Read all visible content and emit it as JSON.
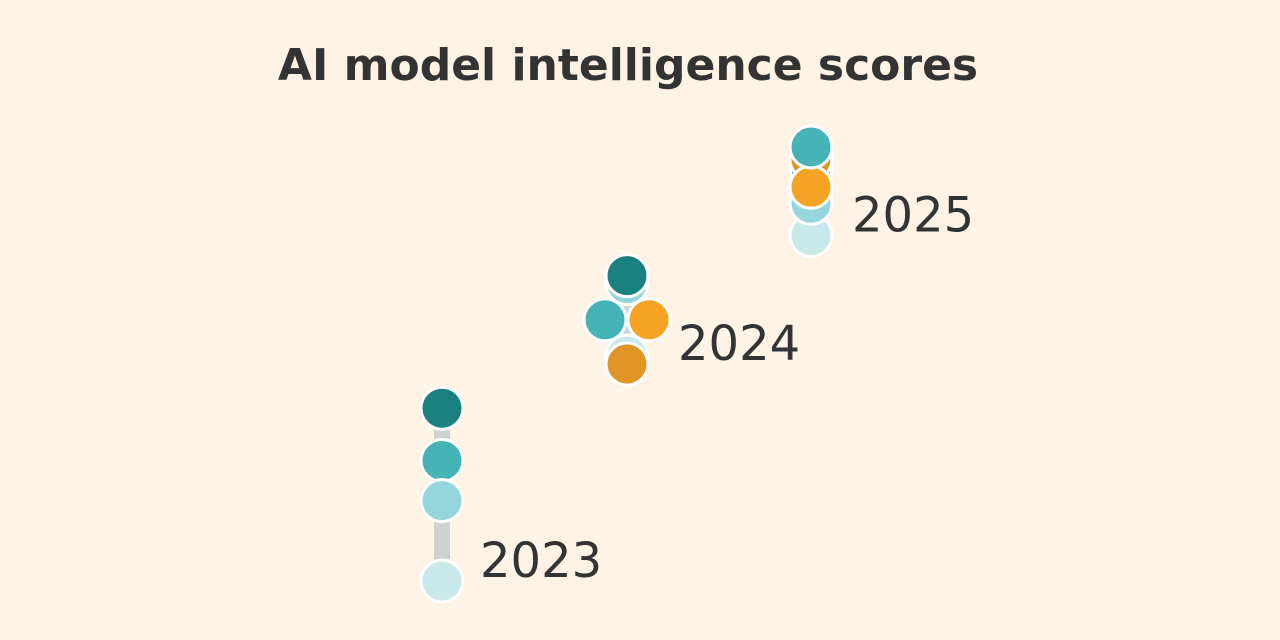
{
  "chart_data": {
    "type": "scatter",
    "title": "AI model intelligence scores",
    "xlabel": "",
    "ylabel": "",
    "grid": false,
    "legend": "none",
    "colors": {
      "background": "#fef3e4",
      "range_bar": "#d0d0d0",
      "dot_outline": "#ffffff",
      "text": "#333333"
    },
    "categories": [
      "2023",
      "2024",
      "2025"
    ],
    "groups": [
      {
        "label": "2023",
        "points": [
          {
            "value": 90,
            "color": "#1a8080"
          },
          {
            "value": 77,
            "color": "#46b3b6"
          },
          {
            "value": 67,
            "color": "#95d6dc"
          },
          {
            "value": 47,
            "color": "#c8e8ea"
          }
        ]
      },
      {
        "label": "2024",
        "points": [
          {
            "value": 121,
            "color": "#95d6dc"
          },
          {
            "value": 123,
            "color": "#1a8080"
          },
          {
            "value": 112,
            "color": "#46b3b6"
          },
          {
            "value": 112,
            "color": "#f5a324"
          },
          {
            "value": 103,
            "color": "#c8e8ea"
          },
          {
            "value": 101,
            "color": "#e09624"
          }
        ]
      },
      {
        "label": "2025",
        "points": [
          {
            "value": 133,
            "color": "#c8e8ea"
          },
          {
            "value": 141,
            "color": "#95d6dc"
          },
          {
            "value": 150,
            "color": "#1a8080"
          },
          {
            "value": 152,
            "color": "#e09624"
          },
          {
            "value": 145,
            "color": "#f5a324"
          },
          {
            "value": 155,
            "color": "#46b3b6"
          }
        ]
      }
    ]
  }
}
